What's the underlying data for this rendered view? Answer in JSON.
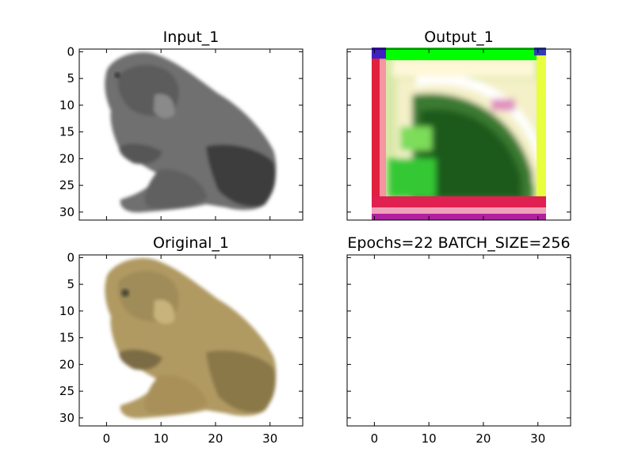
{
  "chart_data": [
    {
      "type": "image",
      "title": "Input_1",
      "content": "grayscale frog image",
      "xlim": [
        -5,
        36
      ],
      "ylim": [
        31.5,
        -0.5
      ],
      "xticks": [
        0,
        10,
        20,
        30
      ],
      "yticks": [
        0,
        5,
        10,
        15,
        20,
        25,
        30
      ],
      "show_x_tick_labels": false,
      "show_y_tick_labels": true
    },
    {
      "type": "image",
      "title": "Output_1",
      "content": "colour-noise reconstruction with green, white, red and yellow bands",
      "xlim": [
        -5,
        36
      ],
      "ylim": [
        31.5,
        -0.5
      ],
      "xticks": [
        0,
        10,
        20,
        30
      ],
      "yticks": [
        0,
        5,
        10,
        15,
        20,
        25,
        30
      ],
      "show_x_tick_labels": false,
      "show_y_tick_labels": false
    },
    {
      "type": "image",
      "title": "Original_1",
      "content": "colour frog image (tan / khaki)",
      "xlim": [
        -5,
        36
      ],
      "ylim": [
        31.5,
        -0.5
      ],
      "xticks": [
        0,
        10,
        20,
        30
      ],
      "yticks": [
        0,
        5,
        10,
        15,
        20,
        25,
        30
      ],
      "show_x_tick_labels": true,
      "show_y_tick_labels": true
    },
    {
      "type": "image",
      "title": "Epochs=22 BATCH_SIZE=256",
      "content": "empty",
      "xlim": [
        -5,
        36
      ],
      "ylim": [
        31.5,
        -0.5
      ],
      "xticks": [
        0,
        10,
        20,
        30
      ],
      "yticks": [
        0,
        5,
        10,
        15,
        20,
        25,
        30
      ],
      "show_x_tick_labels": true,
      "show_y_tick_labels": false
    }
  ]
}
